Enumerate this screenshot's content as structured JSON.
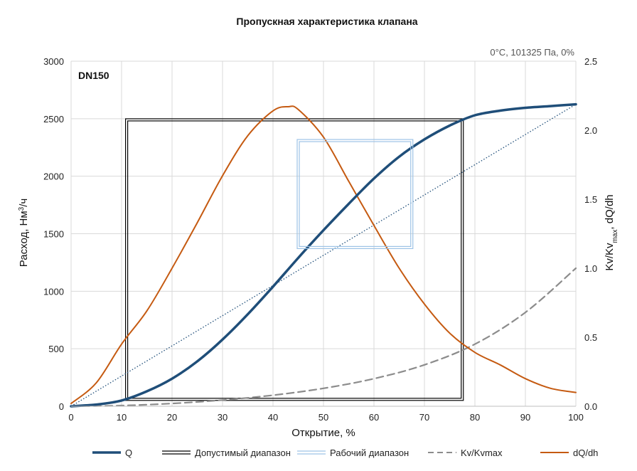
{
  "chart_data": {
    "type": "line",
    "title": "Пропускная характеристика клапана",
    "conditions": "0°C, 101325 Па, 0%",
    "series_label": "DN150",
    "xlabel": "Открытие, %",
    "ylabel": "Расход, Нм³/ч",
    "ylabel_parts": {
      "pre": "Расход, Нм",
      "sup": "3",
      "post": "/ч"
    },
    "y2label": "Kv/Kvmax, dQ/dh",
    "y2label_parts": {
      "pre": "Kv/Kv",
      "sub": "max",
      "post": ", dQ/dh"
    },
    "xlim": [
      0,
      100
    ],
    "ylim": [
      0,
      3000
    ],
    "y2lim": [
      0,
      2.5
    ],
    "x_ticks": [
      "0",
      "10",
      "20",
      "30",
      "40",
      "50",
      "60",
      "70",
      "80",
      "90",
      "100"
    ],
    "y_ticks": [
      "0",
      "500",
      "1000",
      "1500",
      "2000",
      "2500",
      "3000"
    ],
    "y2_ticks": [
      "0.0",
      "0.5",
      "1.0",
      "1.5",
      "2.0",
      "2.5"
    ],
    "grid": true,
    "legend_position": "bottom",
    "series": [
      {
        "name": "Q",
        "axis": "y",
        "color": "#1f4e79",
        "style": "solid-thick",
        "x": [
          0,
          5,
          10,
          15,
          20,
          25,
          30,
          35,
          40,
          45,
          50,
          55,
          60,
          65,
          70,
          75,
          80,
          85,
          90,
          95,
          100
        ],
        "y": [
          0,
          15,
          50,
          130,
          240,
          390,
          580,
          800,
          1040,
          1290,
          1530,
          1760,
          1980,
          2170,
          2320,
          2440,
          2530,
          2570,
          2595,
          2610,
          2625
        ]
      },
      {
        "name": "Kv/Kvmax",
        "axis": "y2",
        "color": "#8c8c8c",
        "style": "dashed",
        "x": [
          0,
          10,
          20,
          30,
          40,
          50,
          60,
          70,
          80,
          90,
          100
        ],
        "y": [
          0,
          0.005,
          0.02,
          0.045,
          0.08,
          0.13,
          0.2,
          0.3,
          0.45,
          0.68,
          1.0
        ]
      },
      {
        "name": "dQ/dh",
        "axis": "y2",
        "color": "#c55a11",
        "style": "solid",
        "x": [
          0,
          5,
          10,
          15,
          20,
          25,
          30,
          35,
          40,
          43,
          45,
          50,
          55,
          60,
          65,
          70,
          75,
          80,
          85,
          90,
          95,
          100
        ],
        "y": [
          0.02,
          0.17,
          0.45,
          0.69,
          1.0,
          1.33,
          1.67,
          1.96,
          2.14,
          2.17,
          2.15,
          1.95,
          1.63,
          1.31,
          1.0,
          0.74,
          0.53,
          0.39,
          0.3,
          0.2,
          0.13,
          0.1
        ]
      }
    ],
    "ranges": [
      {
        "name": "Допустимый диапазон",
        "color": "#000000",
        "x": [
          11,
          77.5
        ],
        "y": [
          60,
          2490
        ]
      },
      {
        "name": "Рабочий диапазон",
        "color": "#9dc3e6",
        "x": [
          45,
          67.5
        ],
        "y": [
          1380,
          2310
        ]
      }
    ],
    "reference_line": {
      "axis": "y",
      "color": "#1f4e79",
      "style": "dotted",
      "x": [
        0,
        100
      ],
      "y": [
        0,
        2625
      ]
    },
    "legend": [
      {
        "label": "Q",
        "style": "line-thick",
        "color": "#1f4e79"
      },
      {
        "label": "Допустимый диапазон",
        "style": "double-line",
        "color": "#000000"
      },
      {
        "label": "Рабочий диапазон",
        "style": "double-line",
        "color": "#9dc3e6"
      },
      {
        "label": "Kv/Kvmax",
        "style": "dashed",
        "color": "#8c8c8c"
      },
      {
        "label": "dQ/dh",
        "style": "line",
        "color": "#c55a11"
      }
    ]
  }
}
